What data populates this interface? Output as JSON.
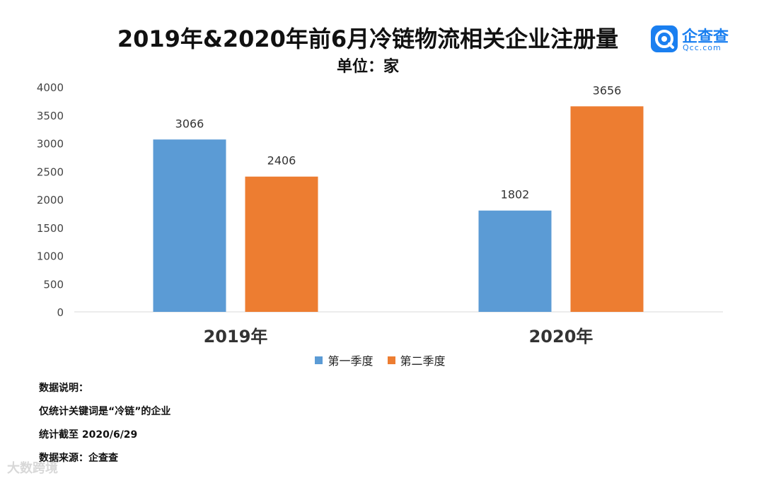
{
  "header": {
    "title": "2019年&2020年前6月冷链物流相关企业注册量",
    "subtitle": "单位：家"
  },
  "brand": {
    "name": "企查查",
    "domain": "Qcc.com",
    "color": "#1a7ff0"
  },
  "chart_data": {
    "type": "bar",
    "categories": [
      "2019年",
      "2020年"
    ],
    "series": [
      {
        "name": "第一季度",
        "color": "#5b9bd5",
        "values": [
          3066,
          1802
        ]
      },
      {
        "name": "第二季度",
        "color": "#ed7d31",
        "values": [
          2406,
          3656
        ]
      }
    ],
    "title": "2019年&2020年前6月冷链物流相关企业注册量",
    "subtitle": "单位：家",
    "ylim": [
      0,
      4000
    ],
    "yticks": [
      0,
      500,
      1000,
      1500,
      2000,
      2500,
      3000,
      3500,
      4000
    ],
    "grid": false,
    "legend": "bottom"
  },
  "notes": {
    "heading": "数据说明：",
    "lines": [
      "仅统计关键词是“冷链”的企业",
      "统计截至 2020/6/29",
      "数据来源：企查查"
    ]
  },
  "watermark": "大数跨境"
}
